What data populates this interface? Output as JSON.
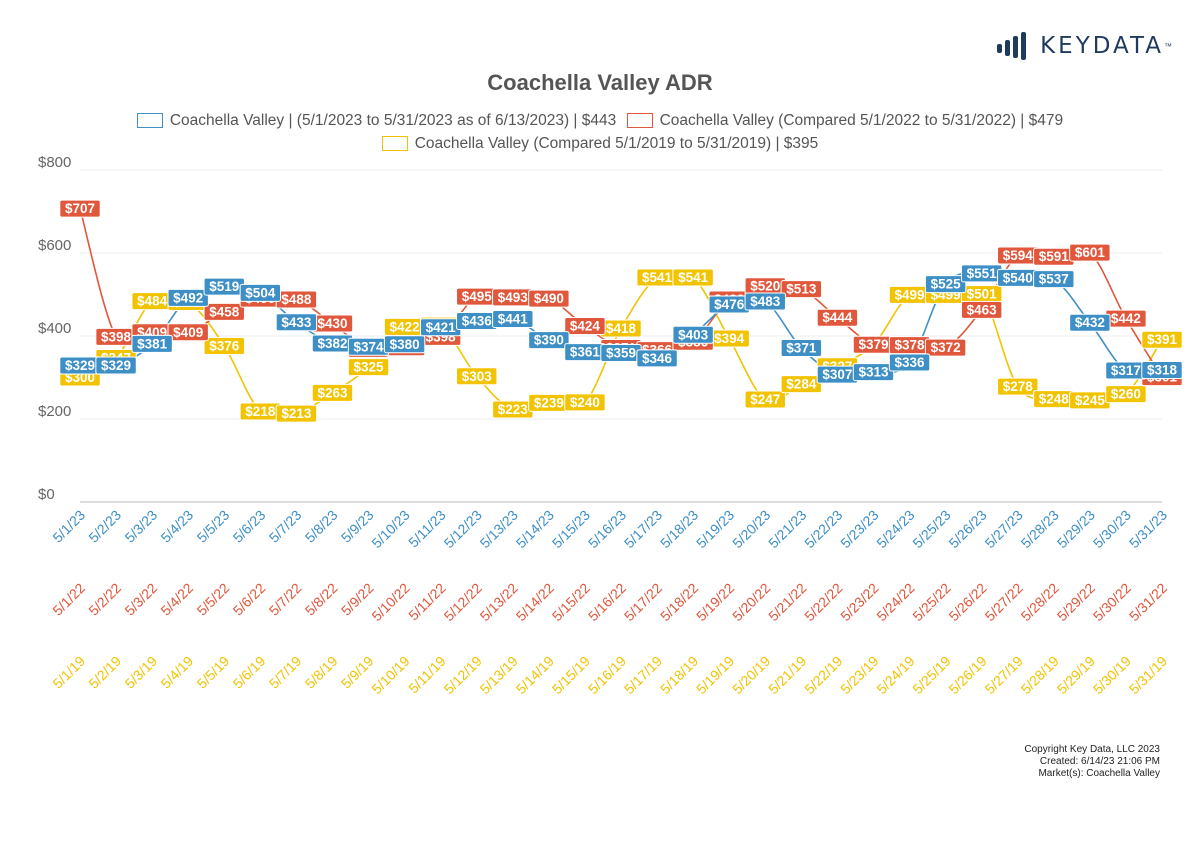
{
  "logo": {
    "text": "KEYDATA",
    "tm": "™",
    "icon": "bar-chart-logo-icon",
    "color": "#1f3a5f"
  },
  "footer": {
    "copyright": "Copyright Key Data, LLC 2023",
    "created": "Created: 6/14/23 21:06 PM",
    "markets": "Market(s):  Coachella Valley"
  },
  "chart_data": {
    "type": "line",
    "title": "Coachella Valley ADR",
    "xlabel": "",
    "ylabel": "",
    "ylim": [
      0,
      800
    ],
    "yticks": [
      "$0",
      "$200",
      "$400",
      "$600",
      "$800"
    ],
    "grid": true,
    "legend_position": "top",
    "x": [
      "5/1/23",
      "5/2/23",
      "5/3/23",
      "5/4/23",
      "5/5/23",
      "5/6/23",
      "5/7/23",
      "5/8/23",
      "5/9/23",
      "5/10/23",
      "5/11/23",
      "5/12/23",
      "5/13/23",
      "5/14/23",
      "5/15/23",
      "5/16/23",
      "5/17/23",
      "5/18/23",
      "5/19/23",
      "5/20/23",
      "5/21/23",
      "5/22/23",
      "5/23/23",
      "5/24/23",
      "5/25/23",
      "5/26/23",
      "5/27/23",
      "5/28/23",
      "5/29/23",
      "5/30/23",
      "5/31/23"
    ],
    "x_2022": [
      "5/1/22",
      "5/2/22",
      "5/3/22",
      "5/4/22",
      "5/5/22",
      "5/6/22",
      "5/7/22",
      "5/8/22",
      "5/9/22",
      "5/10/22",
      "5/11/22",
      "5/12/22",
      "5/13/22",
      "5/14/22",
      "5/15/22",
      "5/16/22",
      "5/17/22",
      "5/18/22",
      "5/19/22",
      "5/20/22",
      "5/21/22",
      "5/22/22",
      "5/23/22",
      "5/24/22",
      "5/25/22",
      "5/26/22",
      "5/27/22",
      "5/28/22",
      "5/29/22",
      "5/30/22",
      "5/31/22"
    ],
    "x_2019": [
      "5/1/19",
      "5/2/19",
      "5/3/19",
      "5/4/19",
      "5/5/19",
      "5/6/19",
      "5/7/19",
      "5/8/19",
      "5/9/19",
      "5/10/19",
      "5/11/19",
      "5/12/19",
      "5/13/19",
      "5/14/19",
      "5/15/19",
      "5/16/19",
      "5/17/19",
      "5/18/19",
      "5/19/19",
      "5/20/19",
      "5/21/19",
      "5/22/19",
      "5/23/19",
      "5/24/19",
      "5/25/19",
      "5/26/19",
      "5/27/19",
      "5/28/19",
      "5/29/19",
      "5/30/19",
      "5/31/19"
    ],
    "series": [
      {
        "name": "Coachella Valley | (5/1/2023 to 5/31/2023 as of 6/13/2023) | $443",
        "color": "#3d8fc6",
        "values": [
          329,
          329,
          381,
          492,
          519,
          504,
          433,
          382,
          374,
          380,
          421,
          436,
          441,
          390,
          361,
          359,
          346,
          403,
          476,
          483,
          371,
          307,
          313,
          336,
          525,
          551,
          540,
          537,
          432,
          317,
          318
        ]
      },
      {
        "name": "Coachella Valley (Compared 5/1/2022 to 5/31/2022) | $479",
        "color": "#e0573c",
        "values": [
          707,
          398,
          409,
          409,
          458,
          490,
          488,
          430,
          369,
          373,
          398,
          495,
          493,
          490,
          424,
          371,
          366,
          386,
          488,
          520,
          513,
          444,
          379,
          378,
          372,
          463,
          594,
          591,
          601,
          442,
          301
        ]
      },
      {
        "name": "Coachella Valley (Compared 5/1/2019 to 5/31/2019) | $395",
        "color": "#f2c300",
        "values": [
          300,
          347,
          484,
          482,
          376,
          218,
          213,
          263,
          325,
          422,
          425,
          303,
          223,
          239,
          240,
          418,
          541,
          541,
          394,
          247,
          284,
          327,
          379,
          499,
          499,
          501,
          278,
          248,
          245,
          260,
          391
        ]
      }
    ]
  }
}
